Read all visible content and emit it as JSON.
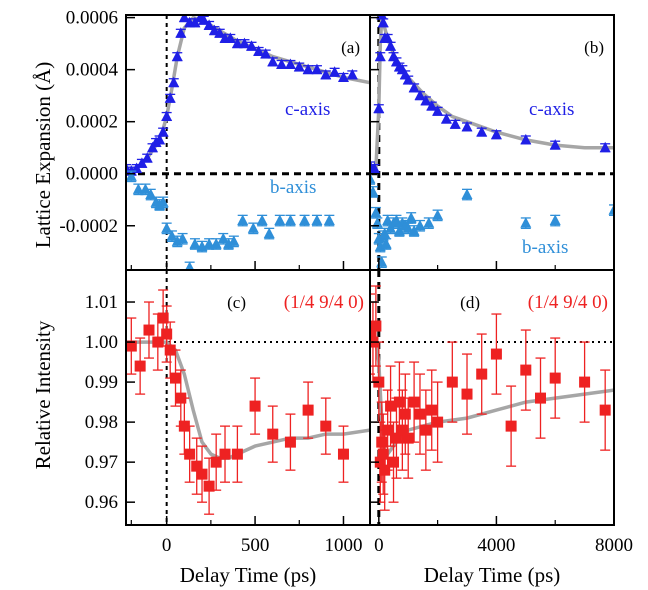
{
  "colors": {
    "c_axis": "#1f1fe6",
    "b_axis": "#2f8fd8",
    "intensity": "#ee2222",
    "fit": "#a6a6a6",
    "axes": "#000000"
  },
  "labels": {
    "ylabel_top": "Lattice Expansion (Å)",
    "ylabel_bottom": "Relative Intensity",
    "xlabel": "Delay Time (ps)"
  },
  "chart_data": [
    {
      "panel": "(a)",
      "type": "scatter",
      "xlim": [
        -230,
        1150
      ],
      "ylim": [
        -0.00037,
        0.00061
      ],
      "yticks": [
        "0.0006",
        "0.0004",
        "0.0002",
        "0.0000",
        "-0.0002"
      ],
      "series": [
        {
          "name": "c-axis",
          "marker": "triangle",
          "x": [
            -230,
            -200,
            -170,
            -140,
            -110,
            -80,
            -60,
            -40,
            -20,
            0,
            20,
            40,
            60,
            80,
            100,
            130,
            160,
            190,
            210,
            240,
            270,
            300,
            330,
            360,
            400,
            440,
            480,
            520,
            560,
            600,
            650,
            700,
            750,
            800,
            850,
            900,
            950,
            1000,
            1050
          ],
          "y": [
            2e-05,
            1e-05,
            2e-05,
            4e-05,
            6e-05,
            0.0001,
            0.00012,
            0.00013,
            0.00016,
            0.00022,
            0.00029,
            0.00035,
            0.00045,
            0.00054,
            0.0006,
            0.00058,
            0.00058,
            0.0006,
            0.00059,
            0.00057,
            0.00055,
            0.00054,
            0.00052,
            0.00052,
            0.0005,
            0.0005,
            0.00049,
            0.00047,
            0.00046,
            0.00043,
            0.00042,
            0.00042,
            0.00041,
            0.0004,
            0.0004,
            0.00038,
            0.00039,
            0.00037,
            0.00038
          ],
          "err": 1.5e-05
        },
        {
          "name": "b-axis",
          "marker": "triangle",
          "x": [
            -200,
            -160,
            -120,
            -90,
            -60,
            -40,
            -20,
            0,
            30,
            60,
            90,
            130,
            160,
            200,
            240,
            280,
            320,
            350,
            380,
            430,
            490,
            540,
            580,
            640,
            700,
            780,
            850,
            920
          ],
          "y": [
            -1e-05,
            -6e-05,
            -6e-05,
            -8e-05,
            -0.00011,
            -0.00012,
            -0.00011,
            -0.00021,
            -0.00024,
            -0.00026,
            -0.00025,
            -0.00036,
            -0.00027,
            -0.00028,
            -0.00027,
            -0.00027,
            -0.00025,
            -0.00027,
            -0.00026,
            -0.00018,
            -0.00021,
            -0.00018,
            -0.00023,
            -0.00018,
            -0.00018,
            -0.00018,
            -0.00018,
            -0.00018
          ],
          "err": 2e-05
        }
      ],
      "fit": {
        "x": [
          -230,
          -150,
          -100,
          -60,
          -30,
          0,
          30,
          60,
          100,
          150,
          200,
          250,
          300,
          400,
          500,
          600,
          700,
          800,
          900,
          1000,
          1150
        ],
        "y": [
          0.0,
          3e-05,
          7e-05,
          0.00011,
          0.00015,
          0.00022,
          0.00033,
          0.00045,
          0.00056,
          0.0006,
          0.00059,
          0.00057,
          0.00055,
          0.00051,
          0.00048,
          0.00045,
          0.00043,
          0.00041,
          0.00039,
          0.00037,
          0.00035
        ]
      },
      "annotations": [
        "c-axis",
        "b-axis"
      ]
    },
    {
      "panel": "(b)",
      "type": "scatter",
      "xlim": [
        -300,
        8000
      ],
      "ylim": [
        -0.00037,
        0.00061
      ],
      "series": [
        {
          "name": "c-axis",
          "marker": "triangle",
          "x": [
            -300,
            -150,
            0,
            50,
            100,
            150,
            200,
            300,
            400,
            500,
            600,
            700,
            800,
            900,
            1000,
            1200,
            1400,
            1600,
            1800,
            2000,
            2300,
            2600,
            3000,
            3500,
            4000,
            5000,
            6000,
            7700
          ],
          "y": [
            3e-05,
            2e-05,
            0.00025,
            0.00045,
            0.00061,
            0.00058,
            0.00052,
            0.00052,
            0.00049,
            0.00045,
            0.00043,
            0.00041,
            0.0004,
            0.00038,
            0.00036,
            0.00033,
            0.0003,
            0.00028,
            0.00026,
            0.00024,
            0.00021,
            0.00019,
            0.00018,
            0.00016,
            0.00015,
            0.00013,
            0.00011,
            0.0001
          ],
          "err": 1.5e-05
        },
        {
          "name": "b-axis",
          "marker": "triangle",
          "x": [
            -300,
            -200,
            -100,
            -50,
            0,
            50,
            100,
            150,
            200,
            250,
            300,
            400,
            500,
            600,
            700,
            800,
            900,
            1000,
            1100,
            1200,
            1400,
            1700,
            2000,
            3000,
            5000,
            6000,
            8000
          ],
          "y": [
            -2e-05,
            -7e-05,
            -0.00015,
            -0.00019,
            -0.00025,
            -0.00028,
            -0.00034,
            -0.00024,
            -0.00023,
            -0.00027,
            -0.00018,
            -0.00021,
            -0.00019,
            -0.00018,
            -0.00022,
            -0.00019,
            -0.0002,
            -0.00021,
            -0.00017,
            -0.00022,
            -0.0002,
            -0.00019,
            -0.00016,
            -8e-05,
            -0.00019,
            -0.00018,
            -0.00014
          ],
          "err": 2e-05
        }
      ],
      "fit": {
        "x": [
          -300,
          -100,
          0,
          50,
          100,
          200,
          300,
          500,
          700,
          1000,
          1500,
          2000,
          2500,
          3000,
          4000,
          5000,
          6000,
          7000,
          8000
        ],
        "y": [
          0.0,
          2e-05,
          0.00025,
          0.0005,
          0.0006,
          0.00056,
          0.00052,
          0.00046,
          0.00042,
          0.00037,
          0.00031,
          0.00026,
          0.00022,
          0.0002,
          0.00016,
          0.00013,
          0.00011,
          0.0001,
          0.0001
        ]
      },
      "annotations": [
        "c-axis",
        "b-axis"
      ]
    },
    {
      "panel": "(c)",
      "hkl": "(1/4 9/4 0)",
      "type": "scatter",
      "xlim": [
        -230,
        1150
      ],
      "ylim": [
        0.9543,
        1.018
      ],
      "xticks": [
        "0",
        "500",
        "1000"
      ],
      "yticks": [
        "1.01",
        "1.00",
        "0.99",
        "0.98",
        "0.97",
        "0.96"
      ],
      "series": [
        {
          "name": "",
          "marker": "square",
          "x": [
            -200,
            -150,
            -100,
            -50,
            -20,
            0,
            20,
            50,
            80,
            100,
            130,
            170,
            200,
            240,
            280,
            330,
            400,
            500,
            600,
            700,
            800,
            900,
            1000
          ],
          "y": [
            0.999,
            0.994,
            1.003,
            1.0,
            1.006,
            1.002,
            0.998,
            0.991,
            0.986,
            0.979,
            0.972,
            0.969,
            0.967,
            0.964,
            0.97,
            0.972,
            0.972,
            0.984,
            0.977,
            0.975,
            0.983,
            0.979,
            0.972
          ],
          "err": 0.007
        }
      ],
      "fit": {
        "x": [
          -230,
          -150,
          -50,
          0,
          50,
          100,
          150,
          200,
          250,
          300,
          350,
          400,
          500,
          600,
          700,
          800,
          900,
          1000,
          1150
        ],
        "y": [
          1.0,
          1.0,
          1.0,
          1.0,
          0.998,
          0.992,
          0.983,
          0.975,
          0.972,
          0.971,
          0.971,
          0.972,
          0.974,
          0.975,
          0.976,
          0.976,
          0.977,
          0.977,
          0.978
        ]
      }
    },
    {
      "panel": "(d)",
      "hkl": "(1/4 9/4 0)",
      "type": "scatter",
      "xlim": [
        -300,
        8000
      ],
      "ylim": [
        0.9543,
        1.018
      ],
      "xticks": [
        "0",
        "4000",
        "8000"
      ],
      "series": [
        {
          "name": "",
          "marker": "square",
          "x": [
            -300,
            -200,
            -100,
            0,
            50,
            100,
            150,
            200,
            300,
            400,
            500,
            600,
            700,
            800,
            900,
            1000,
            1200,
            1400,
            1600,
            1800,
            2000,
            2500,
            3000,
            3500,
            4000,
            4500,
            5000,
            5500,
            6000,
            7000,
            7700
          ],
          "y": [
            1.002,
            1.0,
            1.004,
            0.99,
            0.97,
            0.975,
            0.972,
            0.968,
            0.978,
            0.984,
            0.97,
            0.976,
            0.985,
            0.978,
            0.982,
            0.976,
            0.985,
            0.982,
            0.978,
            0.983,
            0.98,
            0.99,
            0.987,
            0.992,
            0.997,
            0.979,
            0.993,
            0.986,
            0.991,
            0.99,
            0.983
          ],
          "err": 0.01
        }
      ],
      "fit": {
        "x": [
          -300,
          -100,
          0,
          100,
          200,
          300,
          500,
          800,
          1000,
          1500,
          2000,
          3000,
          4000,
          5000,
          6000,
          7000,
          8000
        ],
        "y": [
          1.0,
          1.0,
          0.995,
          0.98,
          0.972,
          0.972,
          0.974,
          0.977,
          0.978,
          0.979,
          0.98,
          0.981,
          0.983,
          0.985,
          0.986,
          0.987,
          0.988
        ]
      }
    }
  ]
}
